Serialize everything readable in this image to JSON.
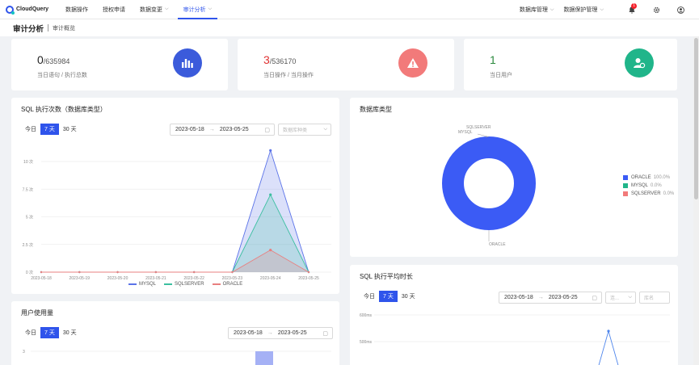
{
  "app": {
    "logo_text": "CloudQuery"
  },
  "nav": {
    "items": [
      {
        "label": "数据操作"
      },
      {
        "label": "授权申请"
      },
      {
        "label": "数据变更"
      },
      {
        "label": "审计分析"
      }
    ],
    "right_items": [
      {
        "label": "数据库管理"
      },
      {
        "label": "数据保护管理"
      }
    ],
    "notification_count": "1",
    "chevron": "⌵",
    "icons": [
      "bell-icon",
      "gear-icon",
      "user-icon"
    ]
  },
  "header": {
    "title": "审计分析",
    "breadcrumb": "审计概览"
  },
  "stats": [
    {
      "value": "0",
      "total": "/635984",
      "label": "当日语句 / 执行总数",
      "icon": "bar-chart-icon",
      "color": "#3b5bdb",
      "value_color": "#222222"
    },
    {
      "value": "3",
      "total": "/536170",
      "label": "当日操作 / 当月操作",
      "icon": "warning-icon",
      "color": "#f27a7a",
      "value_color": "#e03131"
    },
    {
      "value": "1",
      "total": "",
      "label": "当日用户",
      "icon": "user-settings-icon",
      "color": "#20b58a",
      "value_color": "#2b8a3e"
    }
  ],
  "sql_exec": {
    "title": "SQL 执行次数（数据库类型）",
    "tabs": [
      "今日",
      "7 天",
      "30 天"
    ],
    "active_tab": 1,
    "date_from": "2023-05-18",
    "date_to": "2023-05-25",
    "range_arrow": "→",
    "db_type_placeholder": "数据库种类"
  },
  "db_type": {
    "title": "数据库类型"
  },
  "user_usage": {
    "title": "用户使用量",
    "tabs": [
      "今日",
      "7 天",
      "30 天"
    ],
    "active_tab": 1,
    "date_from": "2023-05-18",
    "date_to": "2023-05-25",
    "y_top_label": "3"
  },
  "sql_avg": {
    "title": "SQL 执行平均时长",
    "tabs": [
      "今日",
      "7 天",
      "30 天"
    ],
    "active_tab": 1,
    "date_from": "2023-05-18",
    "date_to": "2023-05-25",
    "select1_placeholder": "连...",
    "select2_placeholder": "库名"
  },
  "chart_data": [
    {
      "type": "area",
      "title": "SQL 执行次数（数据库类型）",
      "categories": [
        "2023-05-18",
        "2023-05-19",
        "2023-05-20",
        "2023-05-21",
        "2023-05-22",
        "2023-05-23",
        "2023-05-24",
        "2023-05-25"
      ],
      "y_ticks": [
        "0 次",
        "2.5 次",
        "5 次",
        "7.5 次",
        "10 次"
      ],
      "ylim": [
        0,
        10
      ],
      "series": [
        {
          "name": "MYSQL",
          "values": [
            0,
            0,
            0,
            0,
            0,
            0,
            11,
            0
          ],
          "color": "#5b73e8"
        },
        {
          "name": "SQLSERVER",
          "values": [
            0,
            0,
            0,
            0,
            0,
            0,
            7,
            0
          ],
          "color": "#3bbfa0"
        },
        {
          "name": "ORACLE",
          "values": [
            0,
            0,
            0,
            0,
            0,
            0,
            2,
            0
          ],
          "color": "#e88080"
        }
      ],
      "legend": "bottom"
    },
    {
      "type": "pie",
      "title": "数据库类型",
      "slices": [
        {
          "name": "ORACLE",
          "value": 100.0,
          "pct": "100.0%",
          "color": "#3b5bf5"
        },
        {
          "name": "MYSQL",
          "value": 0.0,
          "pct": "0.0%",
          "color": "#20b58a"
        },
        {
          "name": "SQLSERVER",
          "value": 0.0,
          "pct": "0.0%",
          "color": "#f27a7a"
        }
      ],
      "legend": "right"
    },
    {
      "type": "line",
      "title": "SQL 执行平均时长",
      "y_ticks": [
        "500ms",
        "600ms"
      ],
      "series": [
        {
          "name": "",
          "color": "#4f86ec"
        }
      ]
    }
  ]
}
